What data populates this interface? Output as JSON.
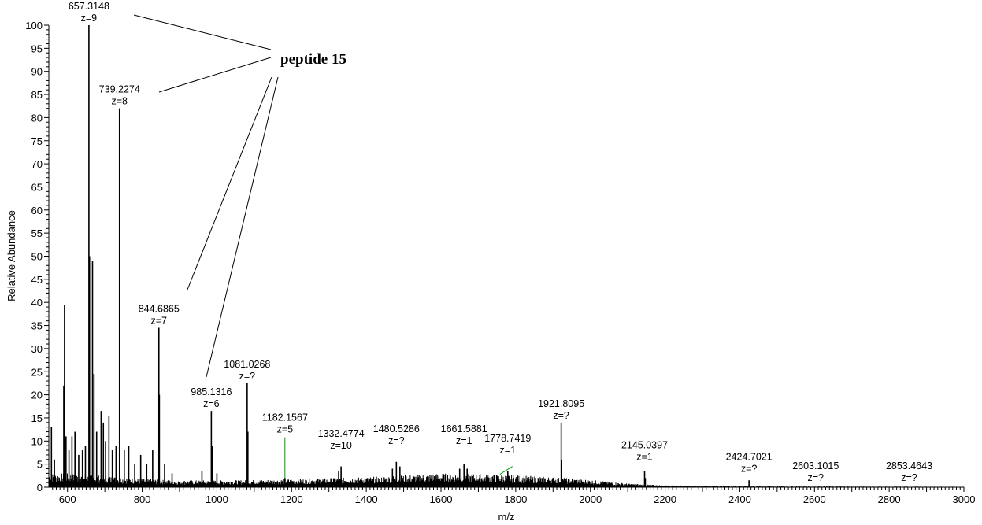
{
  "chart_data": {
    "type": "line",
    "xlabel": "m/z",
    "ylabel": "Relative Abundance",
    "xlim": [
      550,
      3000
    ],
    "ylim": [
      0,
      100
    ],
    "x_ticks": [
      600,
      800,
      1000,
      1200,
      1400,
      1600,
      1800,
      2000,
      2200,
      2400,
      2600,
      2800,
      3000
    ],
    "y_ticks": [
      0,
      5,
      10,
      15,
      20,
      25,
      30,
      35,
      40,
      45,
      50,
      55,
      60,
      65,
      70,
      75,
      80,
      85,
      90,
      95,
      100
    ],
    "grid": false,
    "peaks": [
      {
        "mz": 557,
        "intensity": 13
      },
      {
        "mz": 565,
        "intensity": 6
      },
      {
        "mz": 590,
        "intensity": 22
      },
      {
        "mz": 592,
        "intensity": 39.5
      },
      {
        "mz": 596,
        "intensity": 11
      },
      {
        "mz": 604,
        "intensity": 8
      },
      {
        "mz": 612,
        "intensity": 11
      },
      {
        "mz": 620,
        "intensity": 12
      },
      {
        "mz": 630,
        "intensity": 7
      },
      {
        "mz": 640,
        "intensity": 8
      },
      {
        "mz": 648,
        "intensity": 9
      },
      {
        "mz": 657.3148,
        "intensity": 100
      },
      {
        "mz": 659,
        "intensity": 50
      },
      {
        "mz": 667,
        "intensity": 49
      },
      {
        "mz": 671,
        "intensity": 24.5
      },
      {
        "mz": 678,
        "intensity": 12
      },
      {
        "mz": 690,
        "intensity": 16.5
      },
      {
        "mz": 696,
        "intensity": 14
      },
      {
        "mz": 702,
        "intensity": 10
      },
      {
        "mz": 711,
        "intensity": 15.5
      },
      {
        "mz": 720,
        "intensity": 8
      },
      {
        "mz": 730,
        "intensity": 9
      },
      {
        "mz": 739.2274,
        "intensity": 82
      },
      {
        "mz": 740,
        "intensity": 66
      },
      {
        "mz": 752,
        "intensity": 8
      },
      {
        "mz": 764,
        "intensity": 9
      },
      {
        "mz": 780,
        "intensity": 5
      },
      {
        "mz": 796,
        "intensity": 7
      },
      {
        "mz": 812,
        "intensity": 5
      },
      {
        "mz": 828,
        "intensity": 8
      },
      {
        "mz": 844.6865,
        "intensity": 34.5
      },
      {
        "mz": 846,
        "intensity": 20
      },
      {
        "mz": 860,
        "intensity": 5
      },
      {
        "mz": 880,
        "intensity": 3
      },
      {
        "mz": 960,
        "intensity": 3.5
      },
      {
        "mz": 985.1316,
        "intensity": 16.5
      },
      {
        "mz": 987,
        "intensity": 9
      },
      {
        "mz": 1000,
        "intensity": 3
      },
      {
        "mz": 1081.0268,
        "intensity": 22.5
      },
      {
        "mz": 1083,
        "intensity": 12
      },
      {
        "mz": 1182.1567,
        "intensity": 2
      },
      {
        "mz": 1332.4774,
        "intensity": 4.5
      },
      {
        "mz": 1326,
        "intensity": 3.5
      },
      {
        "mz": 1470,
        "intensity": 4
      },
      {
        "mz": 1480.5286,
        "intensity": 5.5
      },
      {
        "mz": 1490,
        "intensity": 4.5
      },
      {
        "mz": 1650,
        "intensity": 4
      },
      {
        "mz": 1661.5881,
        "intensity": 5
      },
      {
        "mz": 1670,
        "intensity": 4
      },
      {
        "mz": 1778.7419,
        "intensity": 3.5
      },
      {
        "mz": 1921.8095,
        "intensity": 14
      },
      {
        "mz": 1923,
        "intensity": 6
      },
      {
        "mz": 2145.0397,
        "intensity": 3.5
      },
      {
        "mz": 2147,
        "intensity": 2
      },
      {
        "mz": 2424.7021,
        "intensity": 1.5
      }
    ],
    "envelope": [
      [
        550,
        3
      ],
      [
        600,
        3
      ],
      [
        700,
        2.5
      ],
      [
        800,
        1.8
      ],
      [
        900,
        1.5
      ],
      [
        1000,
        1.5
      ],
      [
        1100,
        1.6
      ],
      [
        1200,
        1.8
      ],
      [
        1300,
        2.0
      ],
      [
        1400,
        2.2
      ],
      [
        1500,
        2.6
      ],
      [
        1600,
        3.0
      ],
      [
        1700,
        2.9
      ],
      [
        1800,
        2.6
      ],
      [
        1900,
        2.2
      ],
      [
        2000,
        1.6
      ],
      [
        2100,
        0.8
      ],
      [
        2200,
        0.4
      ],
      [
        2300,
        0.3
      ],
      [
        2500,
        0.2
      ],
      [
        3000,
        0.1
      ]
    ],
    "peak_labels": [
      {
        "mz": 657.3148,
        "y": 100,
        "mass": "657.3148",
        "charge": "z=9"
      },
      {
        "mz": 739.2274,
        "y": 82,
        "mass": "739.2274",
        "charge": "z=8"
      },
      {
        "mz": 844.6865,
        "y": 34.5,
        "mass": "844.6865",
        "charge": "z=7"
      },
      {
        "mz": 985.1316,
        "y": 16.5,
        "mass": "985.1316",
        "charge": "z=6"
      },
      {
        "mz": 1081.0268,
        "y": 22.5,
        "mass": "1081.0268",
        "charge": "z=?"
      },
      {
        "mz": 1182.1567,
        "y": 11,
        "mass": "1182.1567",
        "charge": "z=5"
      },
      {
        "mz": 1332.4774,
        "y": 7.5,
        "mass": "1332.4774",
        "charge": "z=10"
      },
      {
        "mz": 1480.5286,
        "y": 8.5,
        "mass": "1480.5286",
        "charge": "z=?"
      },
      {
        "mz": 1661.5881,
        "y": 8.5,
        "mass": "1661.5881",
        "charge": "z=1"
      },
      {
        "mz": 1778.7419,
        "y": 6.5,
        "mass": "1778.7419",
        "charge": "z=1"
      },
      {
        "mz": 1921.8095,
        "y": 14,
        "mass": "1921.8095",
        "charge": "z=?"
      },
      {
        "mz": 2145.0397,
        "y": 5,
        "mass": "2145.0397",
        "charge": "z=1"
      },
      {
        "mz": 2424.7021,
        "y": 2.5,
        "mass": "2424.7021",
        "charge": "z=?"
      },
      {
        "mz": 2603.1015,
        "y": 0.5,
        "mass": "2603.1015",
        "charge": "z=?"
      },
      {
        "mz": 2853.4643,
        "y": 0.5,
        "mass": "2853.4643",
        "charge": "z=?"
      }
    ],
    "annotation": {
      "text": "peptide 15",
      "targets_mz": [
        657.3148,
        739.2274,
        844.6865,
        985.1316
      ]
    },
    "colors": {
      "trace": "#000000",
      "green_marker": "#00a000"
    }
  }
}
